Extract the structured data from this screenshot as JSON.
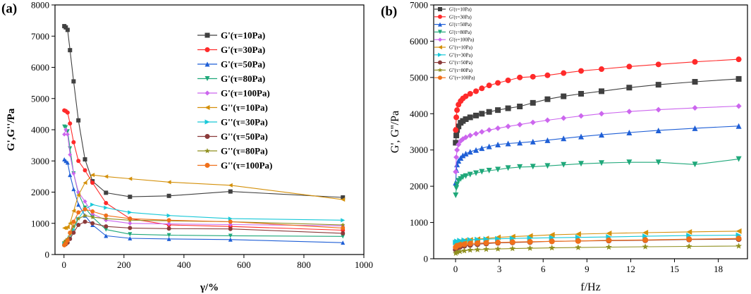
{
  "panels": {
    "a_label": "(a)",
    "b_label": "(b)"
  },
  "chart_data": [
    {
      "type": "line",
      "panel": "a",
      "xlabel": "γ/%",
      "ylabel": "G',G''/Pa",
      "xlim": [
        -30,
        1000
      ],
      "ylim": [
        0,
        8000
      ],
      "xticks": [
        0,
        200,
        400,
        600,
        800,
        1000
      ],
      "yticks": [
        0,
        1000,
        2000,
        3000,
        4000,
        5000,
        6000,
        7000,
        8000
      ],
      "legend_position": "top-right",
      "series": [
        {
          "name": "G'(τ=10Pa)",
          "color": "#404040",
          "marker": "square",
          "x": [
            1,
            6,
            12,
            20,
            32,
            48,
            70,
            95,
            140,
            220,
            350,
            555,
            930
          ],
          "y": [
            7320,
            7280,
            7200,
            6550,
            5550,
            4300,
            3050,
            2350,
            1980,
            1850,
            1880,
            2020,
            1830
          ]
        },
        {
          "name": "G'(τ=30Pa)",
          "color": "#ff2a2a",
          "marker": "circle",
          "x": [
            1,
            6,
            12,
            20,
            32,
            48,
            70,
            95,
            140,
            220,
            350,
            555,
            930
          ],
          "y": [
            4620,
            4600,
            4550,
            4200,
            3600,
            3000,
            2700,
            2300,
            1650,
            1150,
            950,
            900,
            780
          ]
        },
        {
          "name": "G'(τ=50Pa)",
          "color": "#1f5fd6",
          "marker": "triangle-up",
          "x": [
            1,
            6,
            12,
            20,
            32,
            48,
            70,
            95,
            140,
            220,
            350,
            555,
            930
          ],
          "y": [
            3050,
            3000,
            2950,
            2550,
            2100,
            1600,
            1250,
            950,
            600,
            520,
            500,
            480,
            380
          ]
        },
        {
          "name": "G'(τ=80Pa)",
          "color": "#1fa87a",
          "marker": "triangle-down",
          "x": [
            1,
            6,
            12,
            20,
            32,
            48,
            70,
            95,
            140,
            220,
            350,
            555,
            930
          ],
          "y": [
            4100,
            4080,
            3950,
            3400,
            2600,
            1950,
            1500,
            1200,
            800,
            650,
            620,
            600,
            580
          ]
        },
        {
          "name": "G'(τ=100Pa)",
          "color": "#cc66ee",
          "marker": "diamond",
          "x": [
            1,
            6,
            12,
            20,
            32,
            48,
            70,
            95,
            140,
            220,
            350,
            555,
            930
          ],
          "y": [
            3850,
            4000,
            3850,
            3200,
            2600,
            2000,
            1700,
            1300,
            1100,
            1000,
            980,
            960,
            920
          ]
        },
        {
          "name": "G''(τ=10Pa)",
          "color": "#d4900a",
          "marker": "triangle-left",
          "x": [
            1,
            6,
            12,
            20,
            32,
            48,
            70,
            95,
            140,
            220,
            350,
            555,
            930
          ],
          "y": [
            850,
            850,
            880,
            1000,
            1400,
            1900,
            2300,
            2550,
            2500,
            2430,
            2320,
            2220,
            1760
          ]
        },
        {
          "name": "G''(τ=30Pa)",
          "color": "#19c8d8",
          "marker": "triangle-right",
          "x": [
            1,
            6,
            12,
            20,
            32,
            48,
            70,
            95,
            140,
            220,
            350,
            555,
            930
          ],
          "y": [
            350,
            380,
            420,
            550,
            800,
            1150,
            1450,
            1600,
            1500,
            1350,
            1250,
            1150,
            1100
          ]
        },
        {
          "name": "G''(τ=50Pa)",
          "color": "#8b3a3a",
          "marker": "circle",
          "x": [
            1,
            6,
            12,
            20,
            32,
            48,
            70,
            95,
            140,
            220,
            350,
            555,
            930
          ],
          "y": [
            300,
            330,
            380,
            500,
            700,
            950,
            1050,
            1000,
            900,
            850,
            830,
            820,
            680
          ]
        },
        {
          "name": "G''(τ=80Pa)",
          "color": "#8f8f1f",
          "marker": "star",
          "x": [
            1,
            6,
            12,
            20,
            32,
            48,
            70,
            95,
            140,
            220,
            350,
            555,
            930
          ],
          "y": [
            400,
            450,
            500,
            650,
            900,
            1150,
            1250,
            1200,
            1150,
            1100,
            1080,
            1050,
            950
          ]
        },
        {
          "name": "G''(τ=100Pa)",
          "color": "#f0701a",
          "marker": "circle",
          "x": [
            1,
            6,
            12,
            20,
            32,
            48,
            70,
            95,
            140,
            220,
            350,
            555,
            930
          ],
          "y": [
            300,
            350,
            450,
            700,
            1050,
            1350,
            1450,
            1380,
            1250,
            1150,
            1100,
            1050,
            850
          ]
        }
      ]
    },
    {
      "type": "line",
      "panel": "b",
      "xlabel": "f/Hz",
      "ylabel": "G', G''/Pa",
      "xlim": [
        -1.5,
        20
      ],
      "ylim": [
        0,
        7000
      ],
      "xticks": [
        0,
        3,
        6,
        9,
        12,
        15,
        18
      ],
      "yticks": [
        0,
        1000,
        2000,
        3000,
        4000,
        5000,
        6000,
        7000
      ],
      "legend_position": "top-left",
      "series": [
        {
          "name": "G'(τ=10Pa)",
          "color": "#404040",
          "marker": "square",
          "x": [
            0.01,
            0.05,
            0.1,
            0.2,
            0.35,
            0.5,
            0.7,
            1.0,
            1.4,
            1.8,
            2.3,
            2.9,
            3.6,
            4.4,
            5.3,
            6.3,
            7.4,
            8.6,
            10.0,
            11.9,
            13.9,
            16.4,
            19.4
          ],
          "y": [
            3200,
            3400,
            3550,
            3650,
            3750,
            3800,
            3850,
            3900,
            3950,
            4000,
            4050,
            4100,
            4150,
            4200,
            4300,
            4400,
            4480,
            4550,
            4620,
            4720,
            4800,
            4880,
            4960
          ]
        },
        {
          "name": "G'(τ=30Pa)",
          "color": "#ff2a2a",
          "marker": "circle",
          "x": [
            0.01,
            0.05,
            0.1,
            0.2,
            0.35,
            0.5,
            0.7,
            1.0,
            1.4,
            1.8,
            2.3,
            2.9,
            3.6,
            4.4,
            5.3,
            6.3,
            7.4,
            8.6,
            10.0,
            11.9,
            13.9,
            16.4,
            19.4
          ],
          "y": [
            3550,
            3900,
            4100,
            4250,
            4350,
            4420,
            4480,
            4550,
            4620,
            4700,
            4780,
            4850,
            4920,
            5000,
            5020,
            5060,
            5120,
            5180,
            5230,
            5300,
            5360,
            5430,
            5500
          ]
        },
        {
          "name": "G'(τ=50Pa)",
          "color": "#1f5fd6",
          "marker": "triangle-up",
          "x": [
            0.01,
            0.05,
            0.1,
            0.2,
            0.35,
            0.5,
            0.7,
            1.0,
            1.4,
            1.8,
            2.3,
            2.9,
            3.6,
            4.4,
            5.3,
            6.3,
            7.4,
            8.6,
            10.0,
            11.9,
            13.9,
            16.4,
            19.4
          ],
          "y": [
            2100,
            2450,
            2600,
            2700,
            2780,
            2850,
            2900,
            2950,
            3000,
            3050,
            3100,
            3150,
            3180,
            3200,
            3230,
            3270,
            3320,
            3370,
            3420,
            3480,
            3540,
            3600,
            3660
          ]
        },
        {
          "name": "G'(τ=80Pa)",
          "color": "#1fa87a",
          "marker": "triangle-down",
          "x": [
            0.01,
            0.05,
            0.1,
            0.2,
            0.35,
            0.5,
            0.7,
            1.0,
            1.4,
            1.8,
            2.3,
            2.9,
            3.6,
            4.4,
            5.3,
            6.3,
            7.4,
            8.6,
            10.0,
            11.9,
            13.9,
            16.4,
            19.4
          ],
          "y": [
            1750,
            1950,
            2050,
            2150,
            2200,
            2250,
            2280,
            2320,
            2360,
            2400,
            2430,
            2460,
            2500,
            2530,
            2540,
            2560,
            2590,
            2620,
            2640,
            2660,
            2660,
            2600,
            2750
          ]
        },
        {
          "name": "G'(τ=100Pa)",
          "color": "#cc66ee",
          "marker": "diamond",
          "x": [
            0.01,
            0.05,
            0.1,
            0.2,
            0.35,
            0.5,
            0.7,
            1.0,
            1.4,
            1.8,
            2.3,
            2.9,
            3.6,
            4.4,
            5.3,
            6.3,
            7.4,
            8.6,
            10.0,
            11.9,
            13.9,
            16.4,
            19.4
          ],
          "y": [
            2400,
            2800,
            3000,
            3150,
            3250,
            3300,
            3350,
            3400,
            3450,
            3500,
            3550,
            3600,
            3650,
            3700,
            3760,
            3820,
            3880,
            3940,
            4000,
            4060,
            4110,
            4160,
            4210
          ]
        },
        {
          "name": "G''(τ=10Pa)",
          "color": "#d4900a",
          "marker": "triangle-left",
          "x": [
            0.01,
            0.1,
            0.3,
            0.6,
            1.0,
            1.5,
            2.1,
            2.9,
            3.9,
            5.1,
            6.6,
            8.4,
            10.5,
            13.0,
            16.0,
            19.4
          ],
          "y": [
            420,
            460,
            480,
            500,
            520,
            540,
            560,
            590,
            610,
            630,
            660,
            680,
            700,
            720,
            740,
            760
          ]
        },
        {
          "name": "G''(τ=30Pa)",
          "color": "#19c8d8",
          "marker": "triangle-right",
          "x": [
            0.01,
            0.1,
            0.3,
            0.6,
            1.0,
            1.5,
            2.1,
            2.9,
            3.9,
            5.1,
            6.6,
            8.4,
            10.5,
            13.0,
            16.0,
            19.4
          ],
          "y": [
            450,
            480,
            500,
            510,
            520,
            530,
            540,
            550,
            560,
            570,
            580,
            590,
            600,
            620,
            640,
            650
          ]
        },
        {
          "name": "G''(τ=50Pa)",
          "color": "#8b3a3a",
          "marker": "circle",
          "x": [
            0.01,
            0.1,
            0.3,
            0.6,
            1.0,
            1.5,
            2.1,
            2.9,
            3.9,
            5.1,
            6.6,
            8.4,
            10.5,
            13.0,
            16.0,
            19.4
          ],
          "y": [
            250,
            300,
            330,
            360,
            380,
            400,
            420,
            440,
            450,
            460,
            480,
            490,
            500,
            510,
            530,
            540
          ]
        },
        {
          "name": "G''(τ=80Pa)",
          "color": "#8f8f1f",
          "marker": "star",
          "x": [
            0.01,
            0.1,
            0.3,
            0.6,
            1.0,
            1.5,
            2.1,
            2.9,
            3.9,
            5.1,
            6.6,
            8.4,
            10.5,
            13.0,
            16.0,
            19.4
          ],
          "y": [
            150,
            180,
            200,
            220,
            240,
            250,
            260,
            270,
            280,
            290,
            300,
            310,
            320,
            330,
            340,
            350
          ]
        },
        {
          "name": "G''(τ=100Pa)",
          "color": "#f0701a",
          "marker": "circle",
          "x": [
            0.01,
            0.1,
            0.3,
            0.6,
            1.0,
            1.5,
            2.1,
            2.9,
            3.9,
            5.1,
            6.6,
            8.4,
            10.5,
            13.0,
            16.0,
            19.4
          ],
          "y": [
            320,
            360,
            380,
            400,
            420,
            430,
            440,
            450,
            460,
            470,
            480,
            490,
            510,
            520,
            540,
            560
          ]
        }
      ]
    }
  ]
}
